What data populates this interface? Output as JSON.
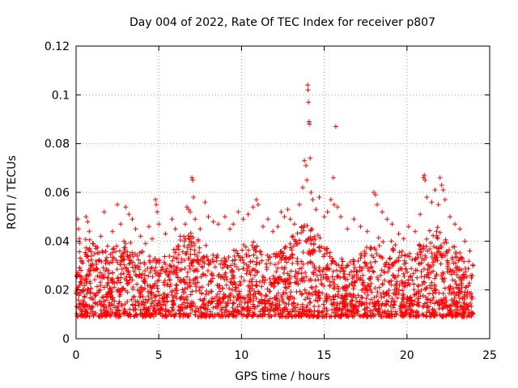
{
  "chart_data": {
    "type": "scatter",
    "title": "Day 004 of 2022, Rate Of TEC Index for receiver p807",
    "xlabel": "GPS time / hours",
    "ylabel": "ROTI / TECUs",
    "xlim": [
      0,
      25
    ],
    "ylim": [
      0,
      0.12
    ],
    "xticks": [
      0,
      5,
      10,
      15,
      20,
      25
    ],
    "xtick_labels": [
      "0",
      "5",
      "10",
      "15",
      "20",
      "25"
    ],
    "yticks": [
      0,
      0.02,
      0.04,
      0.06,
      0.08,
      0.1,
      0.12
    ],
    "ytick_labels": [
      "0",
      "0.02",
      "0.04",
      "0.06",
      "0.08",
      "0.1",
      "0.12"
    ],
    "grid": true,
    "marker": "+",
    "series": [
      {
        "name": "ROTI",
        "color": "#ff0000",
        "x_range": [
          0,
          24
        ],
        "baseline_band": [
          0.005,
          0.03
        ],
        "points": [
          [
            0.1,
            0.049
          ],
          [
            0.15,
            0.045
          ],
          [
            0.2,
            0.041
          ],
          [
            0.25,
            0.033
          ],
          [
            0.3,
            0.028
          ],
          [
            0.4,
            0.031
          ],
          [
            0.6,
            0.05
          ],
          [
            0.7,
            0.048
          ],
          [
            0.8,
            0.044
          ],
          [
            1.0,
            0.039
          ],
          [
            1.2,
            0.037
          ],
          [
            1.5,
            0.042
          ],
          [
            1.7,
            0.052
          ],
          [
            1.9,
            0.038
          ],
          [
            2.2,
            0.044
          ],
          [
            2.5,
            0.055
          ],
          [
            2.7,
            0.047
          ],
          [
            2.9,
            0.04
          ],
          [
            3.0,
            0.054
          ],
          [
            3.2,
            0.051
          ],
          [
            3.4,
            0.049
          ],
          [
            3.6,
            0.045
          ],
          [
            3.9,
            0.042
          ],
          [
            4.2,
            0.039
          ],
          [
            4.4,
            0.046
          ],
          [
            4.6,
            0.041
          ],
          [
            4.8,
            0.057
          ],
          [
            4.85,
            0.055
          ],
          [
            4.9,
            0.052
          ],
          [
            5.0,
            0.047
          ],
          [
            5.4,
            0.043
          ],
          [
            5.8,
            0.049
          ],
          [
            6.0,
            0.045
          ],
          [
            6.3,
            0.042
          ],
          [
            6.6,
            0.047
          ],
          [
            6.7,
            0.054
          ],
          [
            6.8,
            0.053
          ],
          [
            6.9,
            0.052
          ],
          [
            7.0,
            0.066
          ],
          [
            7.05,
            0.065
          ],
          [
            7.1,
            0.058
          ],
          [
            7.2,
            0.049
          ],
          [
            7.5,
            0.045
          ],
          [
            7.8,
            0.056
          ],
          [
            8.0,
            0.05
          ],
          [
            8.3,
            0.048
          ],
          [
            8.6,
            0.047
          ],
          [
            9.0,
            0.05
          ],
          [
            9.3,
            0.045
          ],
          [
            9.5,
            0.047
          ],
          [
            9.8,
            0.052
          ],
          [
            10.1,
            0.049
          ],
          [
            10.4,
            0.051
          ],
          [
            10.7,
            0.054
          ],
          [
            10.9,
            0.057
          ],
          [
            11.0,
            0.055
          ],
          [
            11.3,
            0.046
          ],
          [
            11.6,
            0.049
          ],
          [
            11.9,
            0.044
          ],
          [
            12.2,
            0.046
          ],
          [
            12.4,
            0.052
          ],
          [
            12.6,
            0.05
          ],
          [
            12.8,
            0.053
          ],
          [
            12.95,
            0.049
          ],
          [
            13.2,
            0.047
          ],
          [
            13.5,
            0.055
          ],
          [
            13.7,
            0.062
          ],
          [
            13.8,
            0.073
          ],
          [
            13.9,
            0.071
          ],
          [
            13.95,
            0.065
          ],
          [
            14.0,
            0.104
          ],
          [
            14.02,
            0.102
          ],
          [
            14.05,
            0.097
          ],
          [
            14.08,
            0.089
          ],
          [
            14.1,
            0.088
          ],
          [
            14.15,
            0.074
          ],
          [
            14.2,
            0.06
          ],
          [
            14.3,
            0.057
          ],
          [
            14.5,
            0.053
          ],
          [
            14.7,
            0.058
          ],
          [
            15.0,
            0.05
          ],
          [
            15.2,
            0.052
          ],
          [
            15.4,
            0.057
          ],
          [
            15.55,
            0.066
          ],
          [
            15.6,
            0.055
          ],
          [
            15.7,
            0.087
          ],
          [
            15.8,
            0.054
          ],
          [
            16.0,
            0.05
          ],
          [
            16.4,
            0.045
          ],
          [
            16.8,
            0.049
          ],
          [
            17.2,
            0.046
          ],
          [
            17.6,
            0.044
          ],
          [
            18.0,
            0.06
          ],
          [
            18.1,
            0.059
          ],
          [
            18.2,
            0.055
          ],
          [
            18.5,
            0.052
          ],
          [
            18.8,
            0.049
          ],
          [
            19.1,
            0.047
          ],
          [
            19.5,
            0.043
          ],
          [
            19.8,
            0.041
          ],
          [
            20.1,
            0.046
          ],
          [
            20.5,
            0.044
          ],
          [
            20.8,
            0.051
          ],
          [
            21.0,
            0.066
          ],
          [
            21.05,
            0.067
          ],
          [
            21.1,
            0.065
          ],
          [
            21.2,
            0.058
          ],
          [
            21.5,
            0.056
          ],
          [
            21.7,
            0.061
          ],
          [
            21.9,
            0.055
          ],
          [
            22.0,
            0.066
          ],
          [
            22.1,
            0.063
          ],
          [
            22.2,
            0.061
          ],
          [
            22.3,
            0.057
          ],
          [
            22.6,
            0.05
          ],
          [
            22.9,
            0.047
          ],
          [
            23.2,
            0.045
          ],
          [
            23.5,
            0.04
          ],
          [
            23.8,
            0.036
          ],
          [
            24.0,
            0.03
          ]
        ]
      }
    ]
  }
}
